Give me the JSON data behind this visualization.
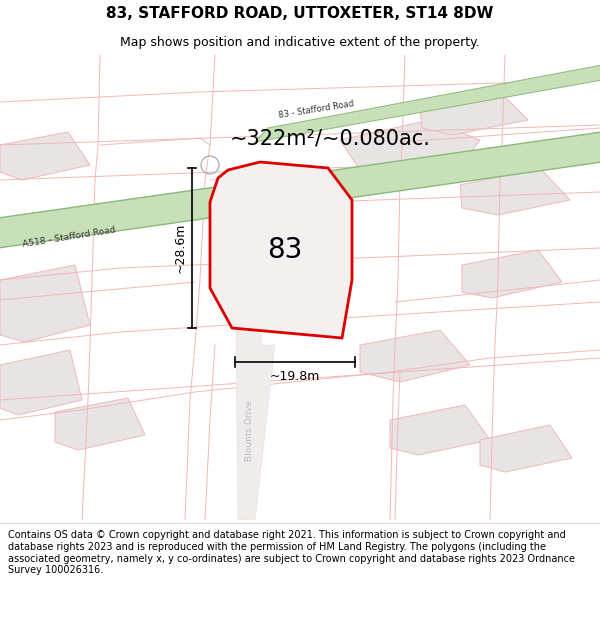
{
  "title": "83, STAFFORD ROAD, UTTOXETER, ST14 8DW",
  "subtitle": "Map shows position and indicative extent of the property.",
  "area_text": "~322m²/~0.080ac.",
  "label_83": "83",
  "dim_height": "~28.6m",
  "dim_width": "~19.8m",
  "road_a518_label": "A518 - Stafford Road",
  "road_83_label": "83 - Stafford Road",
  "road_blounts_label": "Blounts Drive",
  "footer_text": "Contains OS data © Crown copyright and database right 2021. This information is subject to Crown copyright and database rights 2023 and is reproduced with the permission of HM Land Registry. The polygons (including the associated geometry, namely x, y co-ordinates) are subject to Crown copyright and database rights 2023 Ordnance Survey 100026316.",
  "road_green_fill": "#c8e0b8",
  "road_green_stroke": "#8ab87a",
  "plot_stroke": "#dd0000",
  "grid_line_color": "#f0b8b8",
  "block_fill": "#e8e4e4",
  "parcel_fill": "#f0ecec",
  "title_fontsize": 11,
  "subtitle_fontsize": 9,
  "area_fontsize": 15,
  "label_fontsize": 20,
  "dim_fontsize": 9,
  "road_label_fontsize": 6.5,
  "footer_fontsize": 7.0
}
